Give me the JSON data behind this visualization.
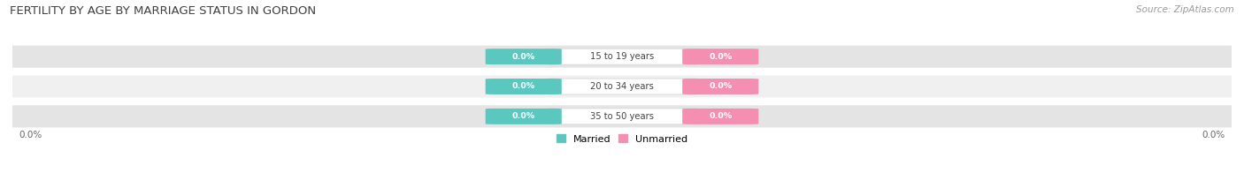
{
  "title": "FERTILITY BY AGE BY MARRIAGE STATUS IN GORDON",
  "source": "Source: ZipAtlas.com",
  "categories": [
    "15 to 19 years",
    "20 to 34 years",
    "35 to 50 years"
  ],
  "married_values": [
    0.0,
    0.0,
    0.0
  ],
  "unmarried_values": [
    0.0,
    0.0,
    0.0
  ],
  "married_color": "#5bc8c0",
  "unmarried_color": "#f48fb1",
  "row_bg_color_light": "#f0f0f0",
  "row_bg_color_dark": "#e4e4e4",
  "title_color": "#404040",
  "title_fontsize": 9.5,
  "source_fontsize": 7.5,
  "axis_label": "0.0%",
  "figsize": [
    14.06,
    1.96
  ],
  "dpi": 100,
  "legend_married": "Married",
  "legend_unmarried": "Unmarried"
}
